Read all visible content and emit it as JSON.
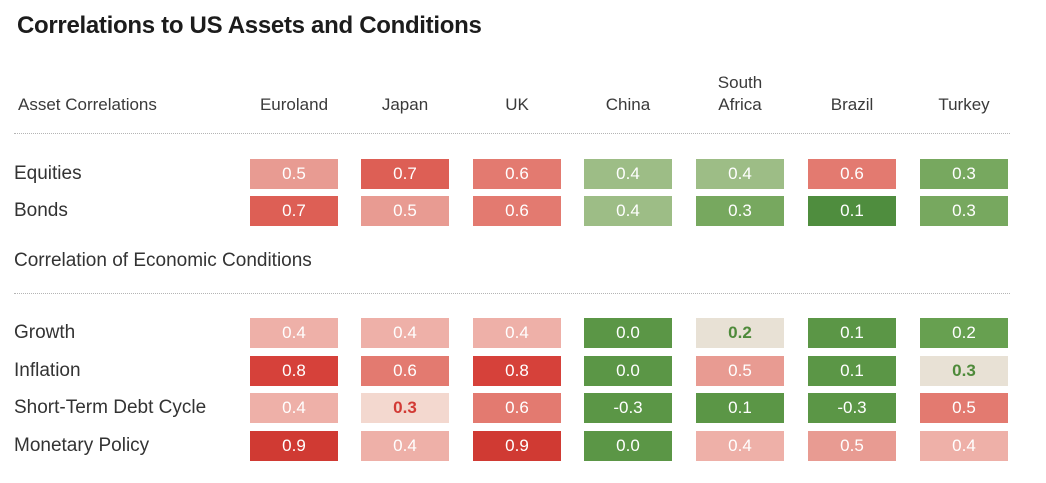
{
  "chart_data": {
    "type": "table",
    "title": "Correlations to US Assets and Conditions",
    "corner_label": "Asset Correlations",
    "columns": [
      {
        "line1": "",
        "line2": "Euroland"
      },
      {
        "line1": "",
        "line2": "Japan"
      },
      {
        "line1": "",
        "line2": "UK"
      },
      {
        "line1": "",
        "line2": "China"
      },
      {
        "line1": "South",
        "line2": "Africa"
      },
      {
        "line1": "",
        "line2": "Brazil"
      },
      {
        "line1": "",
        "line2": "Turkey"
      }
    ],
    "sections": [
      {
        "label": "",
        "rows": [
          {
            "label": "Equities",
            "values": [
              "0.5",
              "0.7",
              "0.6",
              "0.4",
              "0.4",
              "0.6",
              "0.3"
            ],
            "colors": [
              "#e89b92",
              "#dd5f55",
              "#e37a70",
              "#9dbd86",
              "#9dbd86",
              "#e37a70",
              "#77a85f"
            ]
          },
          {
            "label": "Bonds",
            "values": [
              "0.7",
              "0.5",
              "0.6",
              "0.4",
              "0.3",
              "0.1",
              "0.3"
            ],
            "colors": [
              "#dd5f55",
              "#e89b92",
              "#e37a70",
              "#9dbd86",
              "#77a85f",
              "#4f8d3e",
              "#77a85f"
            ]
          }
        ]
      },
      {
        "label": "Correlation of Economic Conditions",
        "rows": [
          {
            "label": "Growth",
            "values": [
              "0.4",
              "0.4",
              "0.4",
              "0.0",
              "0.2",
              "0.1",
              "0.2"
            ],
            "colors": [
              "#eeb0a8",
              "#eeb0a8",
              "#eeb0a8",
              "#5b9646",
              "#e8e1d5",
              "#5b9646",
              "#67a050"
            ]
          },
          {
            "label": "Inflation",
            "values": [
              "0.8",
              "0.6",
              "0.8",
              "0.0",
              "0.5",
              "0.1",
              "0.3"
            ],
            "colors": [
              "#d6413a",
              "#e37a70",
              "#d6413a",
              "#5b9646",
              "#e89b92",
              "#5b9646",
              "#e8e1d5"
            ]
          },
          {
            "label": "Short-Term Debt Cycle",
            "values": [
              "0.4",
              "0.3",
              "0.6",
              "-0.3",
              "0.1",
              "-0.3",
              "0.5"
            ],
            "colors": [
              "#eeb0a8",
              "#f3d8cf",
              "#e37a70",
              "#5b9646",
              "#5b9646",
              "#5b9646",
              "#e37a70"
            ]
          },
          {
            "label": "Monetary Policy",
            "values": [
              "0.9",
              "0.4",
              "0.9",
              "0.0",
              "0.4",
              "0.5",
              "0.4"
            ],
            "colors": [
              "#d03a33",
              "#eeb0a8",
              "#d03a33",
              "#5b9646",
              "#eeb0a8",
              "#e89b92",
              "#eeb0a8"
            ]
          }
        ]
      }
    ],
    "light_cells": [
      {
        "row": "Growth",
        "col": 4
      },
      {
        "row": "Inflation",
        "col": 6
      },
      {
        "row": "Short-Term Debt Cycle",
        "col": 1
      }
    ]
  }
}
